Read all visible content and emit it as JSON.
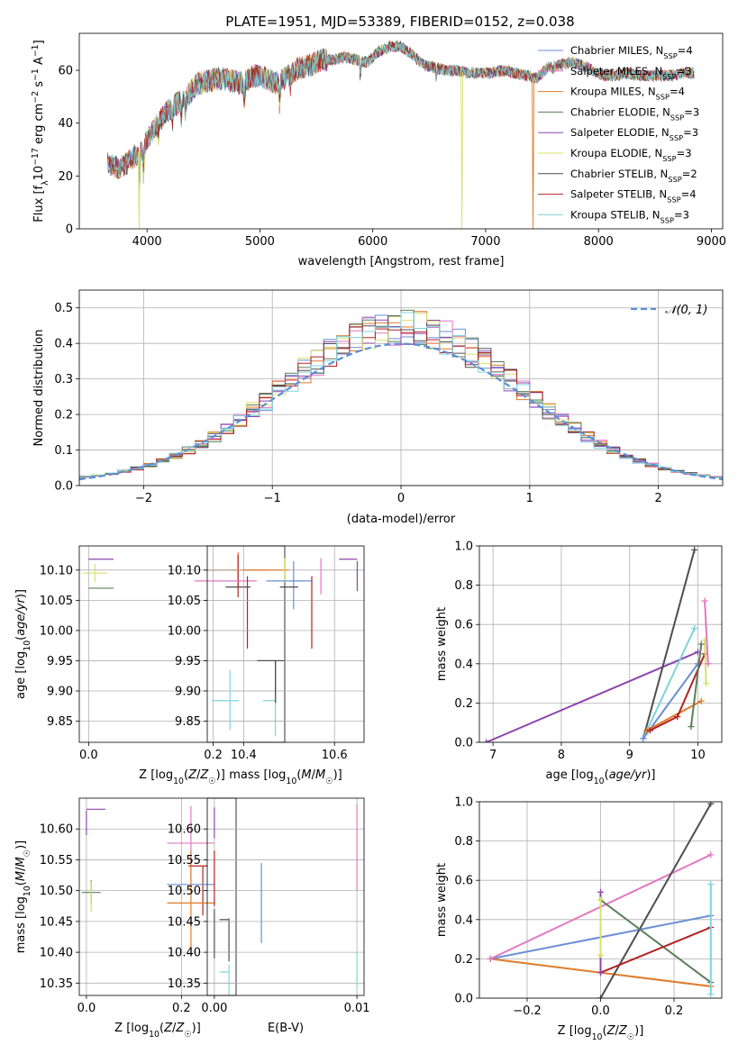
{
  "chart_data": [
    {
      "type": "line",
      "title": "PLATE=1951, MJD=53389, FIBERID=0152, z=0.038",
      "xlabel": "wavelength [Angstrom, rest frame]",
      "ylabel": "Flux [fλ10⁻¹⁷ erg cm⁻² s⁻¹ A⁻¹]",
      "xlim": [
        3400,
        9100
      ],
      "ylim": [
        0,
        74
      ],
      "xticks": [
        4000,
        5000,
        6000,
        7000,
        8000,
        9000
      ],
      "yticks": [
        0,
        20,
        40,
        60
      ],
      "grid": false,
      "legend": "top-right",
      "series": [
        {
          "name": "Chabrier MILES, N_SSP=4",
          "color": "#6b8fd6"
        },
        {
          "name": "Salpeter MILES, N_SSP=3",
          "color": "#e377c2"
        },
        {
          "name": "Kroupa MILES, N_SSP=4",
          "color": "#e07b2a"
        },
        {
          "name": "Chabrier ELODIE, N_SSP=3",
          "color": "#5a7f5a"
        },
        {
          "name": "Salpeter ELODIE, N_SSP=3",
          "color": "#8e44ad"
        },
        {
          "name": "Kroupa ELODIE, N_SSP=3",
          "color": "#d8e068"
        },
        {
          "name": "Chabrier STELIB, N_SSP=2",
          "color": "#4d4d4d"
        },
        {
          "name": "Salpeter STELIB, N_SSP=4",
          "color": "#b22222"
        },
        {
          "name": "Kroupa STELIB, N_SSP=3",
          "color": "#7fd3dc"
        }
      ],
      "continuum": {
        "x": [
          3650,
          3750,
          3850,
          3950,
          4050,
          4150,
          4250,
          4350,
          4450,
          4550,
          4650,
          4750,
          4850,
          4950,
          5050,
          5150,
          5250,
          5350,
          5450,
          5550,
          5650,
          5750,
          5850,
          5950,
          6050,
          6150,
          6250,
          6350,
          6450,
          6550,
          6650,
          6750,
          6850,
          6950,
          7050,
          7150,
          7250,
          7350,
          7450,
          7550,
          7650,
          7750,
          7850,
          7950,
          8050,
          8150,
          8250,
          8350,
          8450,
          8550,
          8650,
          8750,
          8850
        ],
        "y": [
          25,
          23,
          26,
          30,
          37,
          43,
          47,
          50,
          55,
          56,
          57,
          56,
          55,
          58,
          57,
          55,
          58,
          61,
          62,
          64,
          64,
          65,
          64,
          63,
          67,
          69,
          69,
          66,
          62,
          61,
          60,
          60,
          59,
          59,
          59,
          60,
          59,
          58,
          57,
          61,
          62,
          63,
          62,
          60,
          58,
          58,
          59,
          58,
          58,
          58,
          58,
          59,
          59
        ]
      },
      "spikes": [
        {
          "x": 3930,
          "series": "Kroupa ELODIE, N_SSP=3"
        },
        {
          "x": 6790,
          "series": "Kroupa ELODIE, N_SSP=3"
        },
        {
          "x": 7420,
          "series": "Kroupa MILES, N_SSP=4"
        }
      ]
    },
    {
      "type": "step",
      "xlabel": "(data-model)/error",
      "ylabel": "Normed distribution",
      "xlim": [
        -2.5,
        2.5
      ],
      "ylim": [
        0,
        0.55
      ],
      "xticks": [
        -2,
        -1,
        0,
        1,
        2
      ],
      "yticks": [
        0.0,
        0.1,
        0.2,
        0.3,
        0.4,
        0.5
      ],
      "grid": true,
      "legend": "top-right",
      "reference": {
        "name": "𝒩(0, 1)",
        "color": "#5b8fd6",
        "style": "dashed",
        "mean": 0,
        "sigma": 1
      },
      "bin_width": 0.1,
      "bin_start": -2.5,
      "series_colors": [
        "#6b8fd6",
        "#e377c2",
        "#e07b2a",
        "#5a7f5a",
        "#8e44ad",
        "#d8e068",
        "#4d4d4d",
        "#b22222",
        "#7fd3dc"
      ]
    },
    {
      "type": "errorbar",
      "xlabel": "Z [log₁₀(Z/Z☉)]",
      "ylabel": "age  [log₁₀(age/yr)]",
      "xlim": [
        -0.015,
        0.315
      ],
      "ylim": [
        9.815,
        10.14
      ],
      "xticks": [
        0.0,
        0.2
      ],
      "yticks": [
        9.85,
        9.9,
        9.95,
        10.0,
        10.05,
        10.1
      ],
      "grid": true,
      "points": [
        {
          "x": 0.02,
          "y": 10.118,
          "xerr": 0.02,
          "yerr": 0.0,
          "color": "#8e44ad"
        },
        {
          "x": 0.01,
          "y": 10.095,
          "xerr": 0.02,
          "yerr": 0.015,
          "color": "#d8e068"
        },
        {
          "x": 0.02,
          "y": 10.07,
          "xerr": 0.02,
          "yerr": 0.0,
          "color": "#5a7f5a"
        },
        {
          "x": 0.24,
          "y": 10.1,
          "xerr": 0.05,
          "yerr": 0.03,
          "color": "#e07b2a"
        },
        {
          "x": 0.24,
          "y": 10.09,
          "xerr": 0.0,
          "yerr": 0.035,
          "color": "#b22222"
        },
        {
          "x": 0.22,
          "y": 10.082,
          "xerr": 0.05,
          "yerr": 0.0,
          "color": "#e377c2"
        },
        {
          "x": 0.24,
          "y": 10.072,
          "xerr": 0.02,
          "yerr": 0.0,
          "color": "#4d4d4d"
        },
        {
          "x": 0.255,
          "y": 10.03,
          "xerr": 0.0,
          "yerr": 0.06,
          "color": "#b22222"
        },
        {
          "x": 0.29,
          "y": 9.95,
          "xerr": 0.02,
          "yerr": 0.0,
          "color": "#4d4d4d"
        },
        {
          "x": 0.3,
          "y": 9.915,
          "xerr": 0.0,
          "yerr": 0.035,
          "color": "#4d4d4d"
        },
        {
          "x": 0.29,
          "y": 9.884,
          "xerr": 0.01,
          "yerr": 0.0,
          "color": "#7fd3dc"
        },
        {
          "x": 0.3,
          "y": 9.86,
          "xerr": 0.0,
          "yerr": 0.035,
          "color": "#7fd3dc"
        }
      ]
    },
    {
      "type": "errorbar",
      "xlabel": "mass [log₁₀(M/M☉)]",
      "ylabel": "",
      "xlim": [
        10.32,
        10.665
      ],
      "ylim": [
        9.815,
        10.14
      ],
      "xticks": [
        10.4,
        10.6
      ],
      "yticks": [
        9.85,
        9.9,
        9.95,
        10.0,
        10.05,
        10.1
      ],
      "grid": true,
      "points": [
        {
          "x": 10.63,
          "y": 10.118,
          "xerr": 0.02,
          "yerr": 0.0,
          "color": "#8e44ad"
        },
        {
          "x": 10.65,
          "y": 10.09,
          "xerr": 0.0,
          "yerr": 0.025,
          "color": "#8e44ad"
        },
        {
          "x": 10.57,
          "y": 10.09,
          "xerr": 0.0,
          "yerr": 0.03,
          "color": "#e377c2"
        },
        {
          "x": 10.45,
          "y": 10.1,
          "xerr": 0.05,
          "yerr": 0.0,
          "color": "#e07b2a"
        },
        {
          "x": 10.49,
          "y": 10.1,
          "xerr": 0.0,
          "yerr": 0.02,
          "color": "#d8e068"
        },
        {
          "x": 10.5,
          "y": 10.082,
          "xerr": 0.05,
          "yerr": 0.0,
          "color": "#6b8fd6"
        },
        {
          "x": 10.51,
          "y": 10.075,
          "xerr": 0.0,
          "yerr": 0.04,
          "color": "#6b8fd6"
        },
        {
          "x": 10.5,
          "y": 10.072,
          "xerr": 0.02,
          "yerr": 0.0,
          "color": "#4d4d4d"
        },
        {
          "x": 10.55,
          "y": 10.03,
          "xerr": 0.0,
          "yerr": 0.06,
          "color": "#b22222"
        },
        {
          "x": 10.46,
          "y": 9.95,
          "xerr": 0.03,
          "yerr": 0.0,
          "color": "#4d4d4d"
        },
        {
          "x": 10.47,
          "y": 9.915,
          "xerr": 0.0,
          "yerr": 0.035,
          "color": "#4d4d4d"
        },
        {
          "x": 10.36,
          "y": 9.884,
          "xerr": 0.03,
          "yerr": 0.0,
          "color": "#7fd3dc"
        },
        {
          "x": 10.37,
          "y": 9.885,
          "xerr": 0.0,
          "yerr": 0.05,
          "color": "#7fd3dc"
        }
      ]
    },
    {
      "type": "line",
      "xlabel": "age  [log₁₀(age/yr)]",
      "ylabel": "mass weight",
      "xlim": [
        6.8,
        10.35
      ],
      "ylim": [
        0,
        1.0
      ],
      "xticks": [
        7,
        8,
        9,
        10
      ],
      "yticks": [
        0.0,
        0.2,
        0.4,
        0.6,
        0.8,
        1.0
      ],
      "grid": true,
      "series": [
        {
          "color": "#8e44ad",
          "x": [
            6.9,
            10.0
          ],
          "y": [
            0.0,
            0.46
          ]
        },
        {
          "color": "#4d4d4d",
          "x": [
            9.2,
            9.95
          ],
          "y": [
            0.02,
            0.98
          ]
        },
        {
          "color": "#7fd3dc",
          "x": [
            9.2,
            9.95
          ],
          "y": [
            0.02,
            0.58
          ]
        },
        {
          "color": "#6b8fd6",
          "x": [
            9.2,
            10.0
          ],
          "y": [
            0.02,
            0.4
          ]
        },
        {
          "color": "#e07b2a",
          "x": [
            9.25,
            10.05
          ],
          "y": [
            0.06,
            0.21
          ]
        },
        {
          "color": "#b22222",
          "x": [
            9.3,
            9.7,
            10.1
          ],
          "y": [
            0.06,
            0.13,
            0.45
          ]
        },
        {
          "color": "#d8e068",
          "x": [
            10.1,
            10.12
          ],
          "y": [
            0.52,
            0.3
          ]
        },
        {
          "color": "#5a7f5a",
          "x": [
            9.9,
            10.05
          ],
          "y": [
            0.08,
            0.5
          ]
        },
        {
          "color": "#e377c2",
          "x": [
            10.1,
            10.15
          ],
          "y": [
            0.72,
            0.4
          ]
        }
      ]
    },
    {
      "type": "errorbar",
      "xlabel": "Z [log₁₀(Z/Z☉)]",
      "ylabel": "mass [log₁₀(M/M☉)]",
      "xlim": [
        -0.015,
        0.315
      ],
      "ylim": [
        10.33,
        10.65
      ],
      "xticks": [
        0.0,
        0.2
      ],
      "yticks": [
        10.35,
        10.4,
        10.45,
        10.5,
        10.55,
        10.6
      ],
      "grid": true,
      "points": [
        {
          "x": 0.02,
          "y": 10.632,
          "xerr": 0.02,
          "yerr": 0.0,
          "color": "#8e44ad"
        },
        {
          "x": 0.0,
          "y": 10.61,
          "xerr": 0.0,
          "yerr": 0.02,
          "color": "#8e44ad"
        },
        {
          "x": 0.22,
          "y": 10.577,
          "xerr": 0.05,
          "yerr": 0.06,
          "color": "#e377c2"
        },
        {
          "x": 0.235,
          "y": 10.54,
          "xerr": 0.02,
          "yerr": 0.0,
          "color": "#b22222"
        },
        {
          "x": 0.245,
          "y": 10.5,
          "xerr": 0.0,
          "yerr": 0.04,
          "color": "#b22222"
        },
        {
          "x": 0.01,
          "y": 10.497,
          "xerr": 0.02,
          "yerr": 0.02,
          "color": "#5a7f5a"
        },
        {
          "x": 0.01,
          "y": 10.49,
          "xerr": 0.0,
          "yerr": 0.025,
          "color": "#d8e068"
        },
        {
          "x": 0.22,
          "y": 10.51,
          "xerr": 0.05,
          "yerr": 0.0,
          "color": "#6b8fd6"
        },
        {
          "x": 0.22,
          "y": 10.48,
          "xerr": 0.05,
          "yerr": 0.085,
          "color": "#e07b2a"
        },
        {
          "x": 0.29,
          "y": 10.453,
          "xerr": 0.01,
          "yerr": 0.0,
          "color": "#4d4d4d"
        },
        {
          "x": 0.3,
          "y": 10.42,
          "xerr": 0.0,
          "yerr": 0.035,
          "color": "#4d4d4d"
        },
        {
          "x": 0.29,
          "y": 10.368,
          "xerr": 0.01,
          "yerr": 0.0,
          "color": "#7fd3dc"
        },
        {
          "x": 0.3,
          "y": 10.355,
          "xerr": 0.0,
          "yerr": 0.025,
          "color": "#7fd3dc"
        }
      ]
    },
    {
      "type": "errorbar",
      "xlabel": "E(B-V)",
      "ylabel": "",
      "xlim": [
        -0.0005,
        0.0105
      ],
      "ylim": [
        10.33,
        10.65
      ],
      "xticks": [
        0.0,
        0.01
      ],
      "xticklabels": [
        "0.00",
        "0.01"
      ],
      "yticks": [
        10.35,
        10.4,
        10.45,
        10.5,
        10.55,
        10.6
      ],
      "grid": true,
      "points": [
        {
          "x": 0.0,
          "y": 10.61,
          "xerr": 0.0,
          "yerr": 0.025,
          "color": "#8e44ad"
        },
        {
          "x": 0.0,
          "y": 10.52,
          "xerr": 0.0,
          "yerr": 0.045,
          "color": "#b22222"
        },
        {
          "x": 0.0,
          "y": 10.43,
          "xerr": 0.0,
          "yerr": 0.04,
          "color": "#4d4d4d"
        },
        {
          "x": 0.0033,
          "y": 10.48,
          "xerr": 0.0,
          "yerr": 0.065,
          "color": "#6b8fd6"
        },
        {
          "x": 0.01,
          "y": 10.57,
          "xerr": 0.0,
          "yerr": 0.07,
          "color": "#e377c2"
        },
        {
          "x": 0.01,
          "y": 10.37,
          "xerr": 0.0,
          "yerr": 0.03,
          "color": "#7fd3dc"
        }
      ]
    },
    {
      "type": "line",
      "xlabel": "Z [log₁₀(Z/Z☉)]",
      "ylabel": "mass weight",
      "xlim": [
        -0.33,
        0.33
      ],
      "ylim": [
        0,
        1.0
      ],
      "xticks": [
        -0.2,
        0.0,
        0.2
      ],
      "xticklabels": [
        "−0.2",
        "0.0",
        "0.2"
      ],
      "yticks": [
        0.0,
        0.2,
        0.4,
        0.6,
        0.8,
        1.0
      ],
      "grid": true,
      "series": [
        {
          "color": "#e07b2a",
          "x": [
            -0.3,
            0.3
          ],
          "y": [
            0.2,
            0.06
          ]
        },
        {
          "color": "#6b8fd6",
          "x": [
            -0.3,
            0.3
          ],
          "y": [
            0.2,
            0.42
          ]
        },
        {
          "color": "#e377c2",
          "x": [
            -0.3,
            0.3
          ],
          "y": [
            0.2,
            0.73
          ]
        },
        {
          "color": "#4d4d4d",
          "x": [
            0.0,
            0.3
          ],
          "y": [
            0.0,
            0.99
          ]
        },
        {
          "color": "#5a7f5a",
          "x": [
            0.0,
            0.3
          ],
          "y": [
            0.5,
            0.08
          ]
        },
        {
          "color": "#b22222",
          "x": [
            0.0,
            0.3
          ],
          "y": [
            0.13,
            0.36
          ]
        },
        {
          "color": "#8e44ad",
          "x": [
            0.0,
            0.0
          ],
          "y": [
            0.54,
            0.13
          ]
        },
        {
          "color": "#d8e068",
          "x": [
            0.0,
            0.0
          ],
          "y": [
            0.5,
            0.22
          ]
        },
        {
          "color": "#7fd3dc",
          "x": [
            0.3,
            0.3
          ],
          "y": [
            0.58,
            0.02
          ]
        }
      ]
    }
  ]
}
